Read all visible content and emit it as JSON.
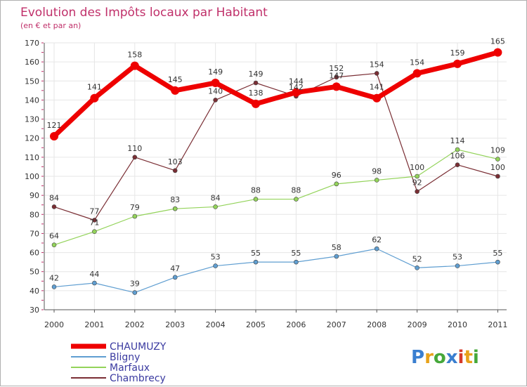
{
  "chart_data": {
    "type": "line",
    "title": "Evolution des Impôts locaux par Habitant",
    "subtitle": "(en € et par an)",
    "xlabel": "",
    "ylabel": "",
    "x": [
      "2000",
      "2001",
      "2002",
      "2003",
      "2004",
      "2005",
      "2006",
      "2007",
      "2008",
      "2009",
      "2010",
      "2011"
    ],
    "ylim": [
      30,
      170
    ],
    "yticks": [
      30,
      40,
      50,
      60,
      70,
      80,
      90,
      100,
      110,
      120,
      130,
      140,
      150,
      160,
      170
    ],
    "grid": true,
    "legend_position": "bottom-left",
    "series": [
      {
        "name": "CHAUMUZY",
        "color": "#ee0000",
        "values": [
          121,
          141,
          158,
          145,
          149,
          138,
          144,
          147,
          141,
          154,
          159,
          165
        ]
      },
      {
        "name": "Bligny",
        "color": "#5f9ed1",
        "values": [
          42,
          44,
          39,
          47,
          53,
          55,
          55,
          58,
          62,
          52,
          53,
          55
        ]
      },
      {
        "name": "Marfaux",
        "color": "#93d35a",
        "values": [
          64,
          71,
          79,
          83,
          84,
          88,
          88,
          96,
          98,
          100,
          114,
          109
        ]
      },
      {
        "name": "Chambrecy",
        "color": "#7a2e34",
        "values": [
          84,
          77,
          110,
          103,
          140,
          149,
          142,
          152,
          154,
          92,
          106,
          100
        ]
      }
    ]
  },
  "brand": {
    "text": "Proxiti",
    "letters": [
      "P",
      "r",
      "o",
      "x",
      "i",
      "t",
      "i"
    ],
    "colors": [
      "#3a7fd0",
      "#e8a21a",
      "#46a83a",
      "#3a7fd0",
      "#d63a2a",
      "#e8a21a",
      "#46a83a"
    ]
  }
}
